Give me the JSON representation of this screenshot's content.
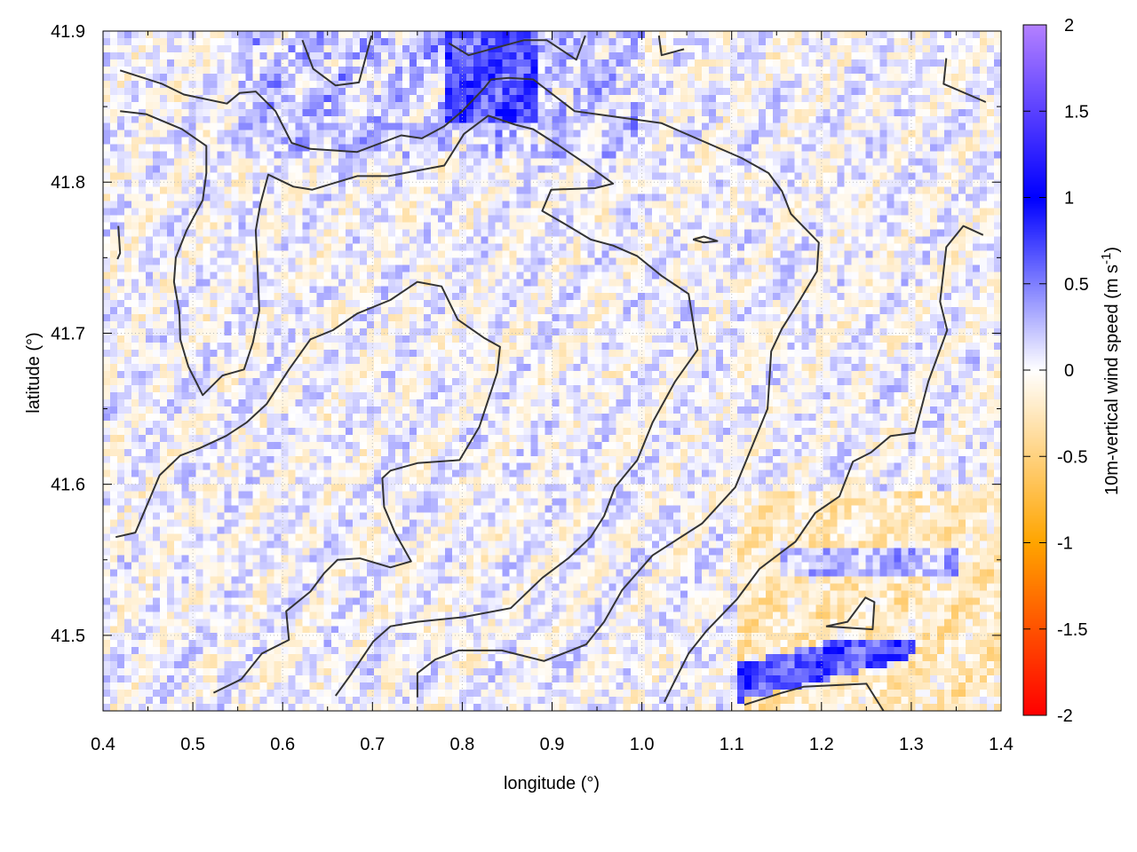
{
  "chart_data": {
    "type": "heatmap",
    "xlabel": "longitude (°)",
    "ylabel": "latitude (°)",
    "colorbar_label": "10m-vertical wind speed (m s",
    "colorbar_label_sup": "-1",
    "colorbar_label_end": ")",
    "xlim": [
      0.4,
      1.4
    ],
    "ylim": [
      41.45,
      41.9
    ],
    "zlim": [
      -2,
      2
    ],
    "xticks": [
      "0.4",
      "0.5",
      "0.6",
      "0.7",
      "0.8",
      "0.9",
      "1.0",
      "1.1",
      "1.2",
      "1.3",
      "1.4"
    ],
    "yticks": [
      "41.5",
      "41.6",
      "41.7",
      "41.8",
      "41.9"
    ],
    "zticks": [
      "2",
      "1.5",
      "1",
      "0.5",
      "0",
      "-0.5",
      "-1",
      "-1.5",
      "-2"
    ],
    "grid": true,
    "colorscale": [
      {
        "value": 2,
        "color": "#b380ff"
      },
      {
        "value": 1,
        "color": "#0000ff"
      },
      {
        "value": 0,
        "color": "#ffffff"
      },
      {
        "value": -1,
        "color": "#ffa500"
      },
      {
        "value": -2,
        "color": "#ff0000"
      }
    ],
    "contour_color": "#333333",
    "contours": [
      [
        [
          0.419,
          41.874
        ],
        [
          0.466,
          41.865
        ],
        [
          0.49,
          41.858
        ],
        [
          0.538,
          41.852
        ],
        [
          0.552,
          41.859
        ],
        [
          0.57,
          41.86
        ],
        [
          0.592,
          41.847
        ],
        [
          0.61,
          41.826
        ],
        [
          0.631,
          41.822
        ],
        [
          0.683,
          41.82
        ],
        [
          0.732,
          41.831
        ],
        [
          0.755,
          41.829
        ],
        [
          0.78,
          41.837
        ],
        [
          0.8,
          41.847
        ],
        [
          0.824,
          41.862
        ],
        [
          0.832,
          41.868
        ],
        [
          0.852,
          41.869
        ],
        [
          0.879,
          41.868
        ],
        [
          0.925,
          41.847
        ],
        [
          1.022,
          41.839
        ],
        [
          1.111,
          41.816
        ],
        [
          1.141,
          41.806
        ],
        [
          1.156,
          41.794
        ],
        [
          1.166,
          41.779
        ],
        [
          1.197,
          41.76
        ],
        [
          1.195,
          41.741
        ],
        [
          1.175,
          41.721
        ],
        [
          1.156,
          41.703
        ],
        [
          1.144,
          41.688
        ],
        [
          1.14,
          41.65
        ],
        [
          1.104,
          41.598
        ],
        [
          1.067,
          41.574
        ],
        [
          1.012,
          41.553
        ],
        [
          0.978,
          41.53
        ],
        [
          0.958,
          41.509
        ],
        [
          0.938,
          41.494
        ],
        [
          0.891,
          41.483
        ],
        [
          0.844,
          41.49
        ],
        [
          0.796,
          41.49
        ],
        [
          0.77,
          41.484
        ],
        [
          0.75,
          41.475
        ],
        [
          0.75,
          41.459
        ]
      ],
      [
        [
          0.419,
          41.847
        ],
        [
          0.448,
          41.845
        ],
        [
          0.488,
          41.835
        ],
        [
          0.515,
          41.824
        ],
        [
          0.515,
          41.806
        ],
        [
          0.511,
          41.788
        ],
        [
          0.493,
          41.768
        ],
        [
          0.481,
          41.75
        ],
        [
          0.479,
          41.734
        ],
        [
          0.485,
          41.714
        ],
        [
          0.486,
          41.696
        ],
        [
          0.495,
          41.678
        ],
        [
          0.511,
          41.659
        ],
        [
          0.533,
          41.672
        ],
        [
          0.557,
          41.676
        ],
        [
          0.567,
          41.694
        ],
        [
          0.574,
          41.715
        ],
        [
          0.572,
          41.744
        ],
        [
          0.57,
          41.768
        ],
        [
          0.575,
          41.785
        ],
        [
          0.584,
          41.805
        ],
        [
          0.612,
          41.797
        ],
        [
          0.633,
          41.795
        ],
        [
          0.683,
          41.804
        ],
        [
          0.718,
          41.804
        ],
        [
          0.78,
          41.811
        ],
        [
          0.802,
          41.832
        ],
        [
          0.829,
          41.844
        ],
        [
          0.859,
          41.838
        ],
        [
          0.879,
          41.835
        ],
        [
          0.908,
          41.824
        ],
        [
          0.938,
          41.812
        ],
        [
          0.968,
          41.799
        ],
        [
          0.948,
          41.796
        ],
        [
          0.899,
          41.795
        ],
        [
          0.889,
          41.781
        ],
        [
          0.918,
          41.771
        ],
        [
          0.943,
          41.762
        ],
        [
          0.968,
          41.758
        ],
        [
          0.995,
          41.751
        ],
        [
          1.022,
          41.738
        ],
        [
          1.052,
          41.726
        ],
        [
          1.062,
          41.689
        ],
        [
          1.037,
          41.668
        ],
        [
          1.012,
          41.641
        ],
        [
          0.995,
          41.616
        ],
        [
          0.97,
          41.598
        ],
        [
          0.958,
          41.579
        ],
        [
          0.943,
          41.565
        ],
        [
          0.918,
          41.551
        ],
        [
          0.889,
          41.538
        ],
        [
          0.854,
          41.518
        ],
        [
          0.8,
          41.512
        ],
        [
          0.75,
          41.509
        ],
        [
          0.72,
          41.506
        ],
        [
          0.701,
          41.496
        ],
        [
          0.676,
          41.474
        ],
        [
          0.659,
          41.46
        ]
      ],
      [
        [
          0.414,
          41.565
        ],
        [
          0.436,
          41.568
        ],
        [
          0.446,
          41.582
        ],
        [
          0.463,
          41.606
        ],
        [
          0.486,
          41.619
        ],
        [
          0.508,
          41.624
        ],
        [
          0.537,
          41.632
        ],
        [
          0.56,
          41.641
        ],
        [
          0.582,
          41.653
        ],
        [
          0.607,
          41.676
        ],
        [
          0.631,
          41.696
        ],
        [
          0.656,
          41.702
        ],
        [
          0.683,
          41.713
        ],
        [
          0.72,
          41.722
        ],
        [
          0.75,
          41.734
        ],
        [
          0.777,
          41.731
        ],
        [
          0.795,
          41.709
        ],
        [
          0.824,
          41.697
        ],
        [
          0.842,
          41.691
        ],
        [
          0.839,
          41.674
        ],
        [
          0.829,
          41.656
        ],
        [
          0.819,
          41.638
        ],
        [
          0.797,
          41.616
        ],
        [
          0.75,
          41.614
        ],
        [
          0.72,
          41.609
        ],
        [
          0.711,
          41.604
        ],
        [
          0.713,
          41.585
        ],
        [
          0.725,
          41.568
        ],
        [
          0.743,
          41.549
        ],
        [
          0.72,
          41.545
        ],
        [
          0.686,
          41.551
        ],
        [
          0.661,
          41.55
        ],
        [
          0.646,
          41.541
        ],
        [
          0.631,
          41.529
        ],
        [
          0.604,
          41.516
        ],
        [
          0.607,
          41.497
        ],
        [
          0.577,
          41.488
        ],
        [
          0.554,
          41.471
        ],
        [
          0.523,
          41.462
        ]
      ],
      [
        [
          1.38,
          41.765
        ],
        [
          1.358,
          41.771
        ],
        [
          1.339,
          41.757
        ],
        [
          1.332,
          41.721
        ],
        [
          1.34,
          41.702
        ],
        [
          1.319,
          41.668
        ],
        [
          1.304,
          41.634
        ],
        [
          1.277,
          41.632
        ],
        [
          1.255,
          41.621
        ],
        [
          1.235,
          41.615
        ],
        [
          1.22,
          41.592
        ],
        [
          1.193,
          41.581
        ],
        [
          1.171,
          41.562
        ],
        [
          1.131,
          41.544
        ],
        [
          1.106,
          41.524
        ],
        [
          1.072,
          41.503
        ],
        [
          1.052,
          41.488
        ],
        [
          1.035,
          41.468
        ],
        [
          1.025,
          41.456
        ]
      ],
      [
        [
          0.622,
          41.894
        ],
        [
          0.634,
          41.875
        ],
        [
          0.659,
          41.864
        ],
        [
          0.685,
          41.866
        ],
        [
          0.699,
          41.897
        ]
      ],
      [
        [
          0.785,
          41.892
        ],
        [
          0.807,
          41.884
        ],
        [
          0.869,
          41.894
        ],
        [
          0.894,
          41.894
        ],
        [
          0.927,
          41.881
        ],
        [
          0.937,
          41.897
        ]
      ],
      [
        [
          1.019,
          41.897
        ],
        [
          1.022,
          41.884
        ],
        [
          1.047,
          41.888
        ]
      ],
      [
        [
          1.339,
          41.882
        ],
        [
          1.336,
          41.865
        ],
        [
          1.383,
          41.853
        ]
      ],
      [
        [
          0.417,
          41.771
        ],
        [
          0.419,
          41.753
        ],
        [
          0.416,
          41.749
        ]
      ],
      [
        [
          1.057,
          41.762
        ],
        [
          1.069,
          41.764
        ],
        [
          1.084,
          41.761
        ],
        [
          1.069,
          41.76
        ],
        [
          1.057,
          41.762
        ]
      ],
      [
        [
          1.205,
          41.506
        ],
        [
          1.229,
          41.509
        ],
        [
          1.249,
          41.525
        ],
        [
          1.259,
          41.522
        ],
        [
          1.257,
          41.504
        ],
        [
          1.205,
          41.506
        ]
      ],
      [
        [
          1.114,
          41.454
        ],
        [
          1.156,
          41.462
        ],
        [
          1.18,
          41.466
        ],
        [
          1.25,
          41.468
        ],
        [
          1.269,
          41.45
        ]
      ]
    ]
  }
}
